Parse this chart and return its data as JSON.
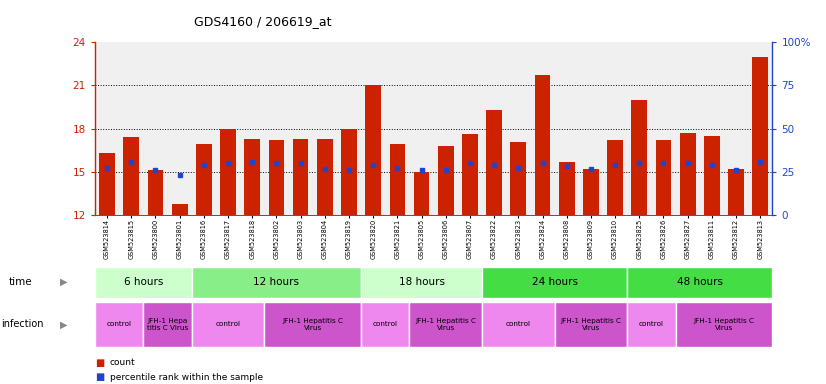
{
  "title": "GDS4160 / 206619_at",
  "ylim_left": [
    12,
    24
  ],
  "ylim_right": [
    0,
    100
  ],
  "yticks_left": [
    12,
    15,
    18,
    21,
    24
  ],
  "yticks_right": [
    0,
    25,
    50,
    75,
    100
  ],
  "samples": [
    "GSM523814",
    "GSM523815",
    "GSM523800",
    "GSM523801",
    "GSM523816",
    "GSM523817",
    "GSM523818",
    "GSM523802",
    "GSM523803",
    "GSM523804",
    "GSM523819",
    "GSM523820",
    "GSM523821",
    "GSM523805",
    "GSM523806",
    "GSM523807",
    "GSM523822",
    "GSM523823",
    "GSM523824",
    "GSM523808",
    "GSM523809",
    "GSM523810",
    "GSM523825",
    "GSM523826",
    "GSM523827",
    "GSM523811",
    "GSM523812",
    "GSM523813"
  ],
  "count_values": [
    16.3,
    17.4,
    15.1,
    12.8,
    16.9,
    18.0,
    17.3,
    17.2,
    17.3,
    17.3,
    18.0,
    21.0,
    16.9,
    15.0,
    16.8,
    17.6,
    19.3,
    17.1,
    21.7,
    15.7,
    15.2,
    17.2,
    20.0,
    17.2,
    17.7,
    17.5,
    15.2,
    23.0
  ],
  "percentile_values": [
    15.3,
    15.7,
    15.1,
    14.8,
    15.5,
    15.6,
    15.7,
    15.6,
    15.6,
    15.2,
    15.1,
    15.5,
    15.3,
    15.1,
    15.1,
    15.6,
    15.5,
    15.3,
    15.6,
    15.4,
    15.2,
    15.5,
    15.6,
    15.6,
    15.6,
    15.5,
    15.1,
    15.7
  ],
  "bar_color": "#cc2200",
  "dot_color": "#2244cc",
  "left_axis_color": "#cc2200",
  "right_axis_color": "#2244cc",
  "plot_bg": "#f0f0f0",
  "time_groups": [
    {
      "label": "6 hours",
      "start": 0,
      "end": 4,
      "color": "#ccffcc"
    },
    {
      "label": "12 hours",
      "start": 4,
      "end": 11,
      "color": "#88ee88"
    },
    {
      "label": "18 hours",
      "start": 11,
      "end": 16,
      "color": "#ccffcc"
    },
    {
      "label": "24 hours",
      "start": 16,
      "end": 22,
      "color": "#44dd44"
    },
    {
      "label": "48 hours",
      "start": 22,
      "end": 28,
      "color": "#44dd44"
    }
  ],
  "infection_groups": [
    {
      "label": "control",
      "start": 0,
      "end": 2,
      "color": "#ee88ee"
    },
    {
      "label": "JFH-1 Hepa\ntitis C Virus",
      "start": 2,
      "end": 4,
      "color": "#cc55cc"
    },
    {
      "label": "control",
      "start": 4,
      "end": 7,
      "color": "#ee88ee"
    },
    {
      "label": "JFH-1 Hepatitis C\nVirus",
      "start": 7,
      "end": 11,
      "color": "#cc55cc"
    },
    {
      "label": "control",
      "start": 11,
      "end": 13,
      "color": "#ee88ee"
    },
    {
      "label": "JFH-1 Hepatitis C\nVirus",
      "start": 13,
      "end": 16,
      "color": "#cc55cc"
    },
    {
      "label": "control",
      "start": 16,
      "end": 19,
      "color": "#ee88ee"
    },
    {
      "label": "JFH-1 Hepatitis C\nVirus",
      "start": 19,
      "end": 22,
      "color": "#cc55cc"
    },
    {
      "label": "control",
      "start": 22,
      "end": 24,
      "color": "#ee88ee"
    },
    {
      "label": "JFH-1 Hepatitis C\nVirus",
      "start": 24,
      "end": 28,
      "color": "#cc55cc"
    }
  ]
}
